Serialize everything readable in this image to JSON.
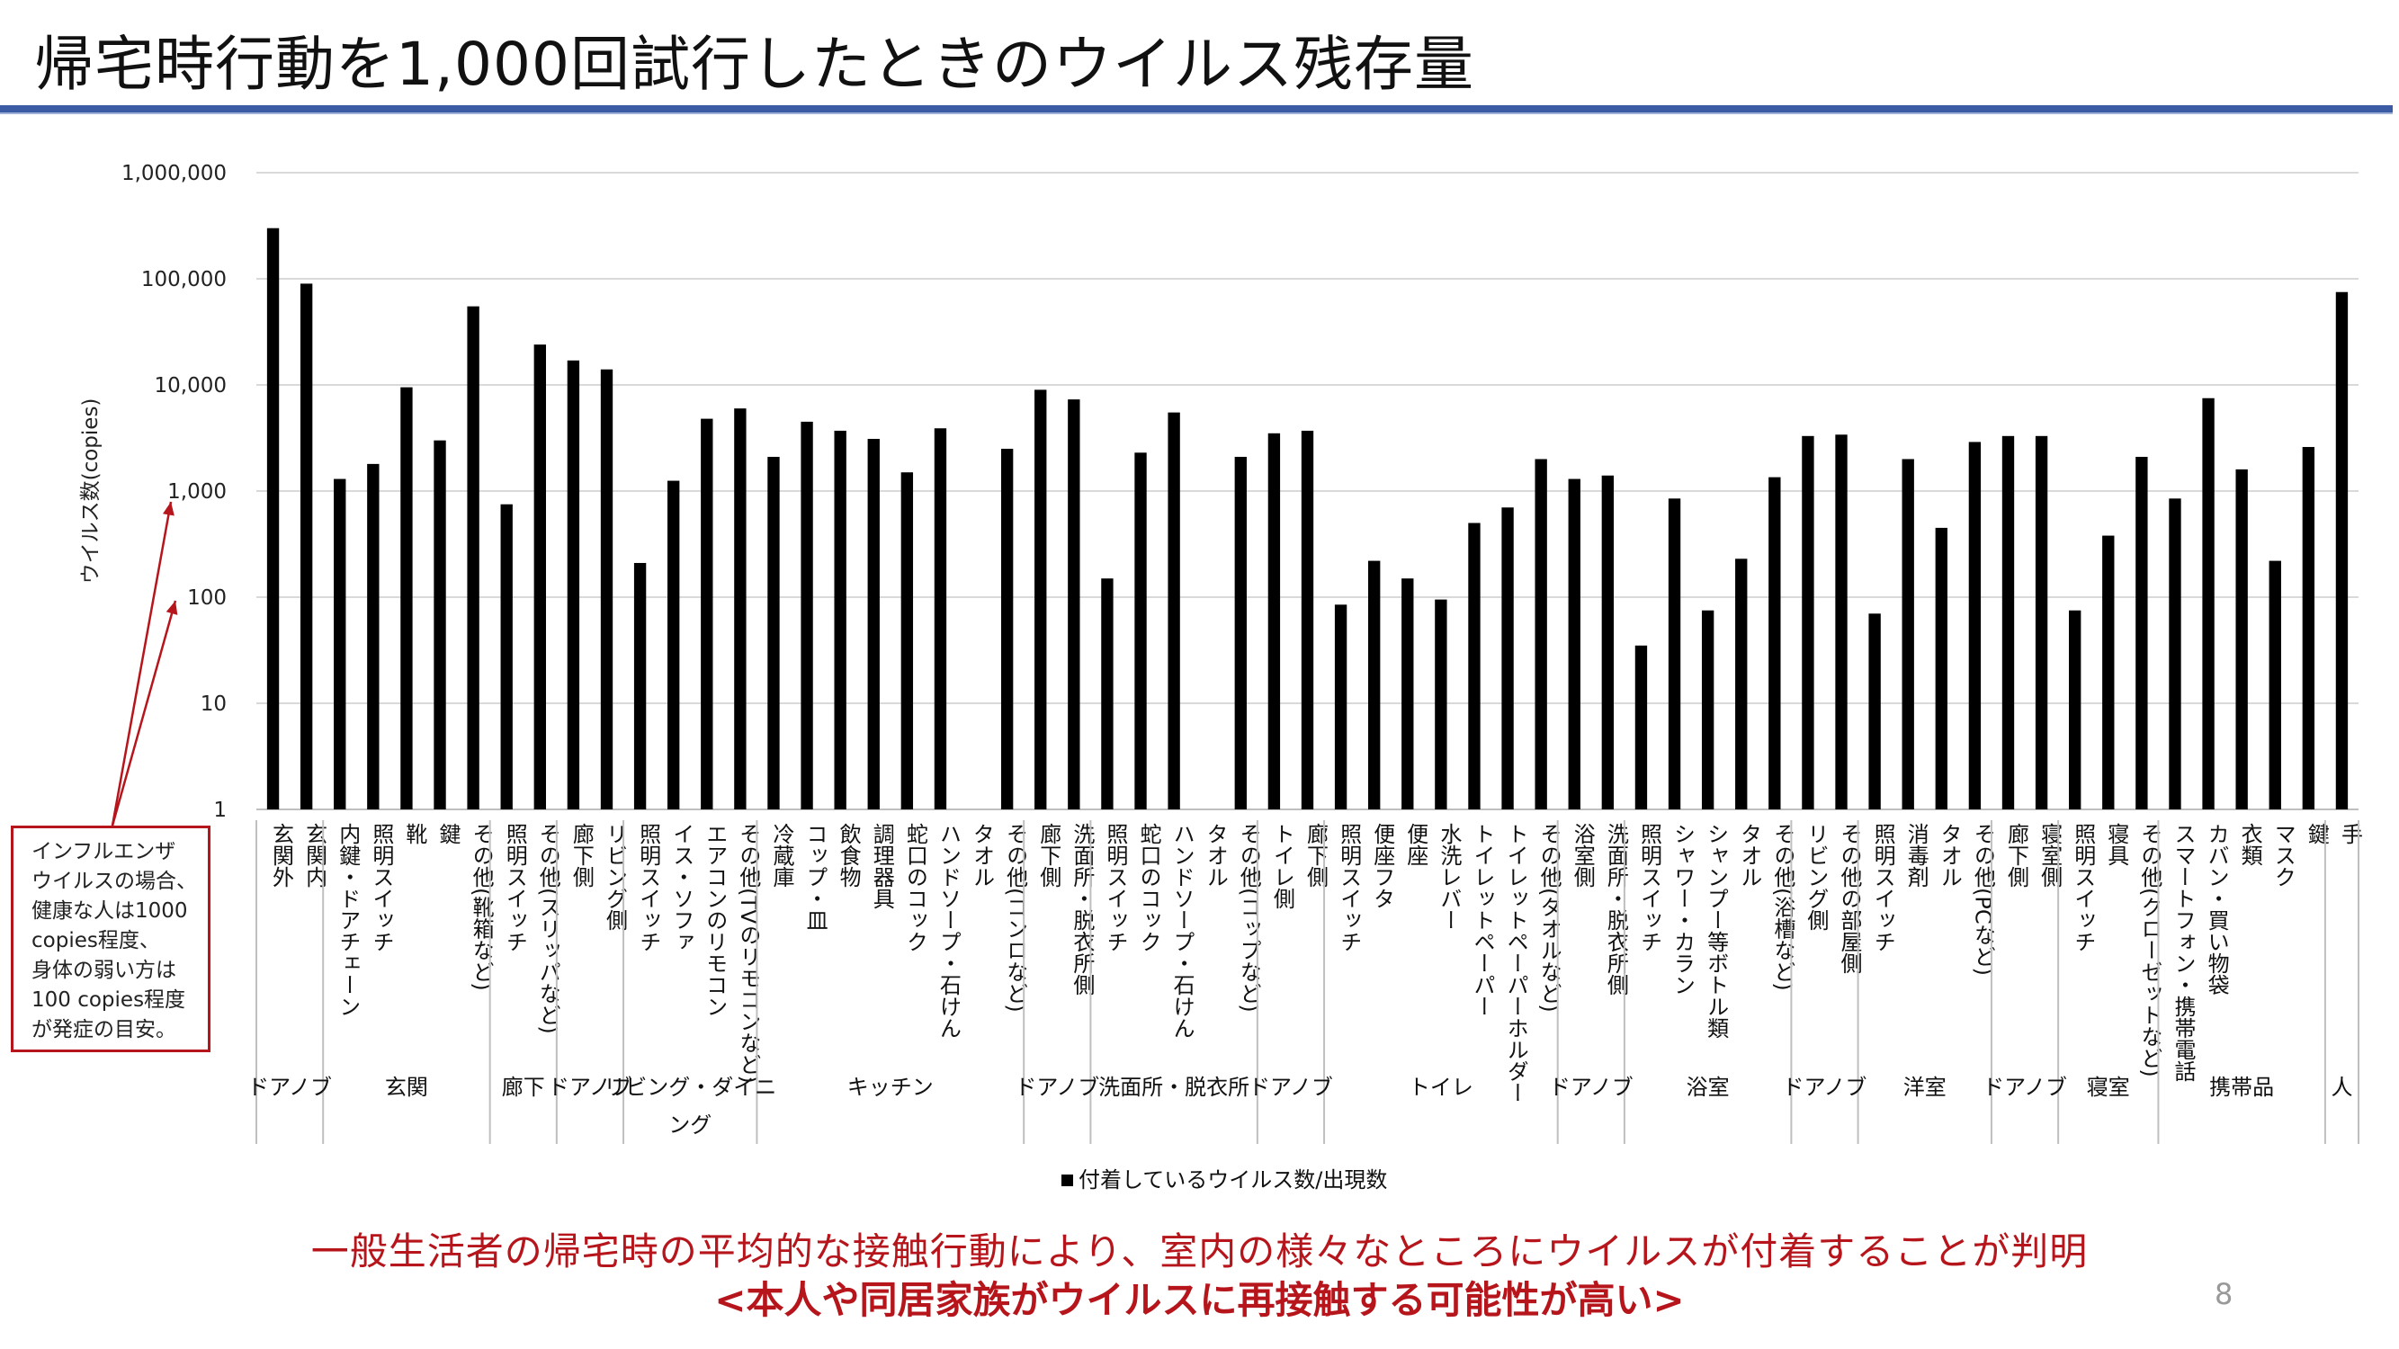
{
  "slide": {
    "title": "帰宅時行動を1,000回試行したときのウイルス残存量",
    "page_number": "8",
    "note_lines": [
      "インフルエンザ",
      "ウイルスの場合、",
      "健康な人は1000",
      "copies程度、",
      "身体の弱い方は",
      "100 copies程度",
      "が発症の目安。"
    ],
    "conclusion_line1": "一般生活者の帰宅時の平均的な接触行動により、室内の様々なところにウイルスが付着することが判明",
    "conclusion_line2": "<本人や同居家族がウイルスに再接触する可能性が高い>",
    "accent_color": "#b5151b",
    "rule_color": "#3b5ba5"
  },
  "chart_data": {
    "type": "bar",
    "yscale": "log",
    "ylim": [
      1,
      1000000
    ],
    "yticks": [
      "1",
      "10",
      "100",
      "1,000",
      "10,000",
      "100,000",
      "1,000,000"
    ],
    "ylabel": "ウイルス数(copies)",
    "legend": "付着しているウイルス数/出現数",
    "legend_position": "bottom",
    "grid": true,
    "categories": [
      "玄関外",
      "玄関内",
      "内鍵・ドアチェーン",
      "照明スイッチ",
      "靴",
      "鍵",
      "その他(靴箱など)",
      "照明スイッチ",
      "その他(スリッパなど)",
      "廊下側",
      "リビング側",
      "照明スイッチ",
      "イス・ソファ",
      "エアコンのリモコン",
      "その他(TVのリモコンなど)",
      "冷蔵庫",
      "コップ・皿",
      "飲食物",
      "調理器具",
      "蛇口のコック",
      "ハンドソープ・石けん",
      "タオル",
      "その他(コンロなど)",
      "廊下側",
      "洗面所・脱衣所側",
      "照明スイッチ",
      "蛇口のコック",
      "ハンドソープ・石けん",
      "タオル",
      "その他(コップなど)",
      "トイレ側",
      "廊下側",
      "照明スイッチ",
      "便座フタ",
      "便座",
      "水洗レバー",
      "トイレットペーパー",
      "トイレットペーパーホルダー",
      "その他(タオルなど)",
      "浴室側",
      "洗面所・脱衣所側",
      "照明スイッチ",
      "シャワー・カラン",
      "シャンプー等ボトル類",
      "タオル",
      "その他(浴槽など)",
      "リビング側",
      "その他の部屋側",
      "照明スイッチ",
      "消毒剤",
      "タオル",
      "その他(PCなど)",
      "廊下側",
      "寝室側",
      "照明スイッチ",
      "寝具",
      "その他(クローゼットなど)",
      "スマートフォン・携帯電話",
      "カバン・買い物袋",
      "衣類",
      "マスク",
      "鍵",
      "手"
    ],
    "values": [
      300000,
      90000,
      1300,
      1800,
      9500,
      3000,
      55000,
      750,
      24000,
      17000,
      14000,
      210,
      1250,
      4800,
      6000,
      2100,
      4500,
      3700,
      3100,
      1500,
      3900,
      null,
      2500,
      9000,
      7300,
      150,
      2300,
      5500,
      null,
      2100,
      3500,
      3700,
      85,
      220,
      150,
      95,
      500,
      700,
      2000,
      1300,
      1400,
      35,
      850,
      75,
      230,
      1350,
      3300,
      3400,
      70,
      2000,
      450,
      2900,
      3300,
      3300,
      75,
      380,
      2100,
      850,
      7500,
      1600,
      220,
      2600,
      75000
    ],
    "groups": [
      {
        "label": "ドアノブ",
        "count": 2
      },
      {
        "label": "玄関",
        "count": 5
      },
      {
        "label": "廊下",
        "count": 2
      },
      {
        "label": "ドアノブ",
        "count": 2
      },
      {
        "label": "リビング・ダイニ",
        "label2": "ング",
        "count": 4
      },
      {
        "label": "キッチン",
        "count": 8
      },
      {
        "label": "ドアノブ",
        "count": 2
      },
      {
        "label": "洗面所・脱衣所",
        "count": 5
      },
      {
        "label": "ドアノブ",
        "count": 2
      },
      {
        "label": "トイレ",
        "count": 7
      },
      {
        "label": "ドアノブ",
        "count": 2
      },
      {
        "label": "浴室",
        "count": 5
      },
      {
        "label": "ドアノブ",
        "count": 2
      },
      {
        "label": "洋室",
        "count": 4
      },
      {
        "label": "ドアノブ",
        "count": 2
      },
      {
        "label": "寝室",
        "count": 3
      },
      {
        "label": "携帯品",
        "count": 5
      },
      {
        "label": "人",
        "count": 1
      }
    ]
  }
}
